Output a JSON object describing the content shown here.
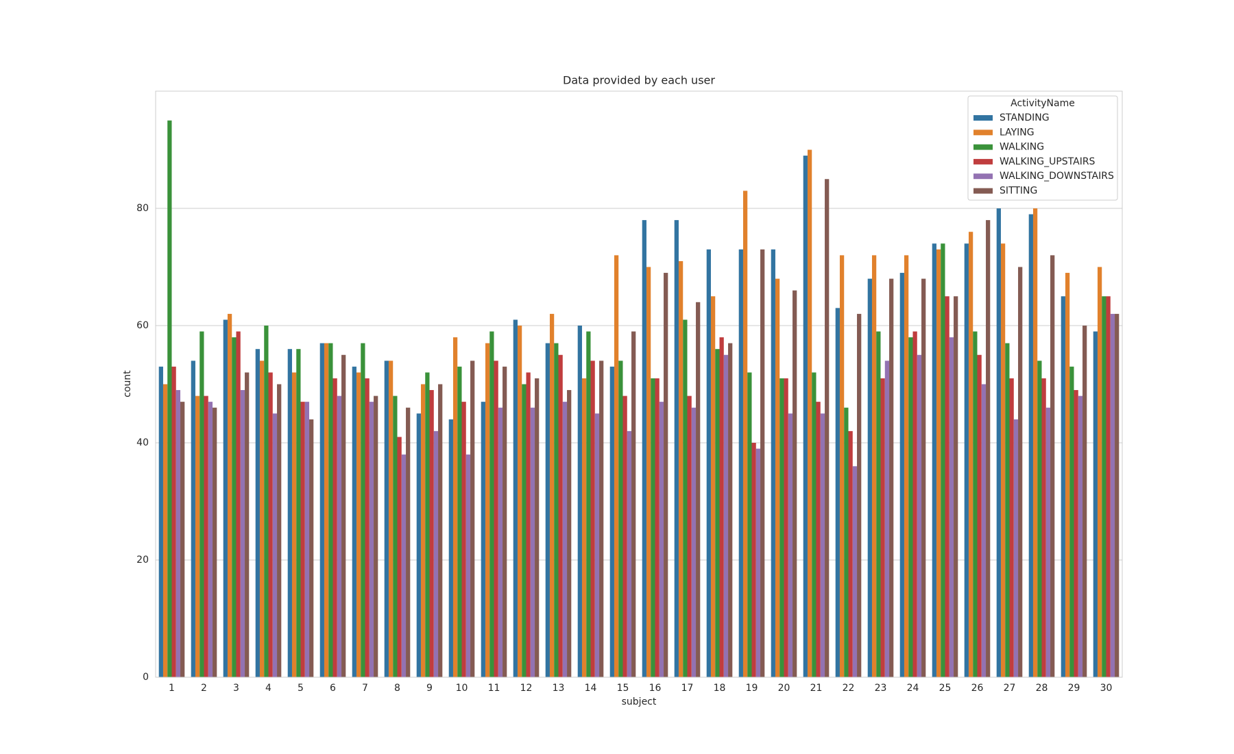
{
  "chart_data": {
    "type": "grouped-bar",
    "title": "Data provided by each user",
    "x_label": "subject",
    "y_label": "count",
    "categories": [
      "1",
      "2",
      "3",
      "4",
      "5",
      "6",
      "7",
      "8",
      "9",
      "10",
      "11",
      "12",
      "13",
      "14",
      "15",
      "16",
      "17",
      "18",
      "19",
      "20",
      "21",
      "22",
      "23",
      "24",
      "25",
      "26",
      "27",
      "28",
      "29",
      "30"
    ],
    "legend_title": "ActivityName",
    "legend_position": "upper-right",
    "grid": true,
    "ylim": [
      0,
      100
    ],
    "yticks": [
      0,
      20,
      40,
      60,
      80
    ],
    "series": [
      {
        "name": "STANDING",
        "color": "#3274a1",
        "values": [
          53,
          54,
          61,
          56,
          56,
          57,
          53,
          54,
          45,
          44,
          47,
          61,
          57,
          60,
          53,
          78,
          78,
          73,
          73,
          73,
          89,
          63,
          68,
          69,
          74,
          74,
          80,
          79,
          65,
          59
        ]
      },
      {
        "name": "LAYING",
        "color": "#e1812c",
        "values": [
          50,
          48,
          62,
          54,
          52,
          57,
          52,
          54,
          50,
          58,
          57,
          60,
          62,
          51,
          72,
          70,
          71,
          65,
          83,
          68,
          90,
          72,
          72,
          72,
          73,
          76,
          74,
          80,
          69,
          70
        ]
      },
      {
        "name": "WALKING",
        "color": "#3a923a",
        "values": [
          95,
          59,
          58,
          60,
          56,
          57,
          57,
          48,
          52,
          53,
          59,
          50,
          57,
          59,
          54,
          51,
          61,
          56,
          52,
          51,
          52,
          46,
          59,
          58,
          74,
          59,
          57,
          54,
          53,
          65
        ]
      },
      {
        "name": "WALKING_UPSTAIRS",
        "color": "#c03d3e",
        "values": [
          53,
          48,
          59,
          52,
          47,
          51,
          51,
          41,
          49,
          47,
          54,
          52,
          55,
          54,
          48,
          51,
          48,
          58,
          40,
          51,
          47,
          42,
          51,
          59,
          65,
          55,
          51,
          51,
          49,
          65
        ]
      },
      {
        "name": "WALKING_DOWNSTAIRS",
        "color": "#9372b2",
        "values": [
          49,
          47,
          49,
          45,
          47,
          48,
          47,
          38,
          42,
          38,
          46,
          46,
          47,
          45,
          42,
          47,
          46,
          55,
          39,
          45,
          45,
          36,
          54,
          55,
          58,
          50,
          44,
          46,
          48,
          62
        ]
      },
      {
        "name": "SITTING",
        "color": "#845b53",
        "values": [
          47,
          46,
          52,
          50,
          44,
          55,
          48,
          46,
          50,
          54,
          53,
          51,
          49,
          54,
          59,
          69,
          64,
          57,
          73,
          66,
          85,
          62,
          68,
          68,
          65,
          78,
          70,
          72,
          60,
          62
        ]
      }
    ]
  }
}
